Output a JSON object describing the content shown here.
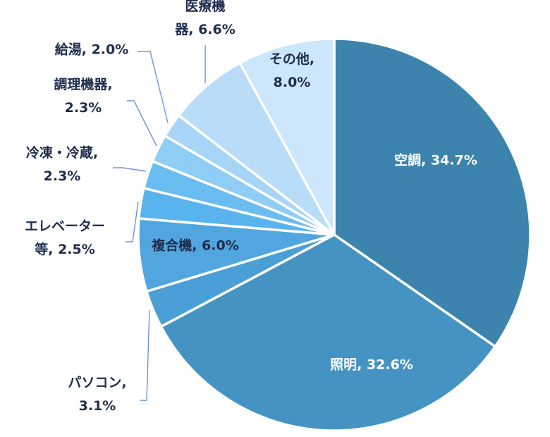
{
  "chart_data": {
    "type": "pie",
    "title": "",
    "start_angle_deg": 0,
    "direction": "clockwise",
    "slices": [
      {
        "name": "空調",
        "value": 34.7,
        "label_lines": [
          "空調, 34.7%"
        ],
        "color": "#3c84ad"
      },
      {
        "name": "照明",
        "value": 32.6,
        "label_lines": [
          "照明, 32.6%"
        ],
        "color": "#4593c3"
      },
      {
        "name": "パソコン",
        "value": 3.1,
        "label_lines": [
          "パソコン,",
          "3.1%"
        ],
        "color": "#4a9fd6"
      },
      {
        "name": "複合機",
        "value": 6.0,
        "label_lines": [
          "複合機, 6.0%"
        ],
        "color": "#52a6e0"
      },
      {
        "name": "エレベーター等",
        "value": 2.5,
        "label_lines": [
          "エレベーター",
          "等, 2.5%"
        ],
        "color": "#58b3ee"
      },
      {
        "name": "冷凍・冷蔵",
        "value": 2.3,
        "label_lines": [
          "冷凍・冷蔵,",
          "2.3%"
        ],
        "color": "#69bdf1"
      },
      {
        "name": "調理機器",
        "value": 2.3,
        "label_lines": [
          "調理機器,",
          "2.3%"
        ],
        "color": "#8fcdf5"
      },
      {
        "name": "給湯",
        "value": 2.0,
        "label_lines": [
          "給湯, 2.0%"
        ],
        "color": "#a6d5f7"
      },
      {
        "name": "医療機器",
        "value": 6.6,
        "label_lines": [
          "医療機",
          "器, 6.6%"
        ],
        "color": "#b9dcf9"
      },
      {
        "name": "その他",
        "value": 8.0,
        "label_lines": [
          "その他,",
          "8.0%"
        ],
        "color": "#cce6fb"
      }
    ]
  }
}
